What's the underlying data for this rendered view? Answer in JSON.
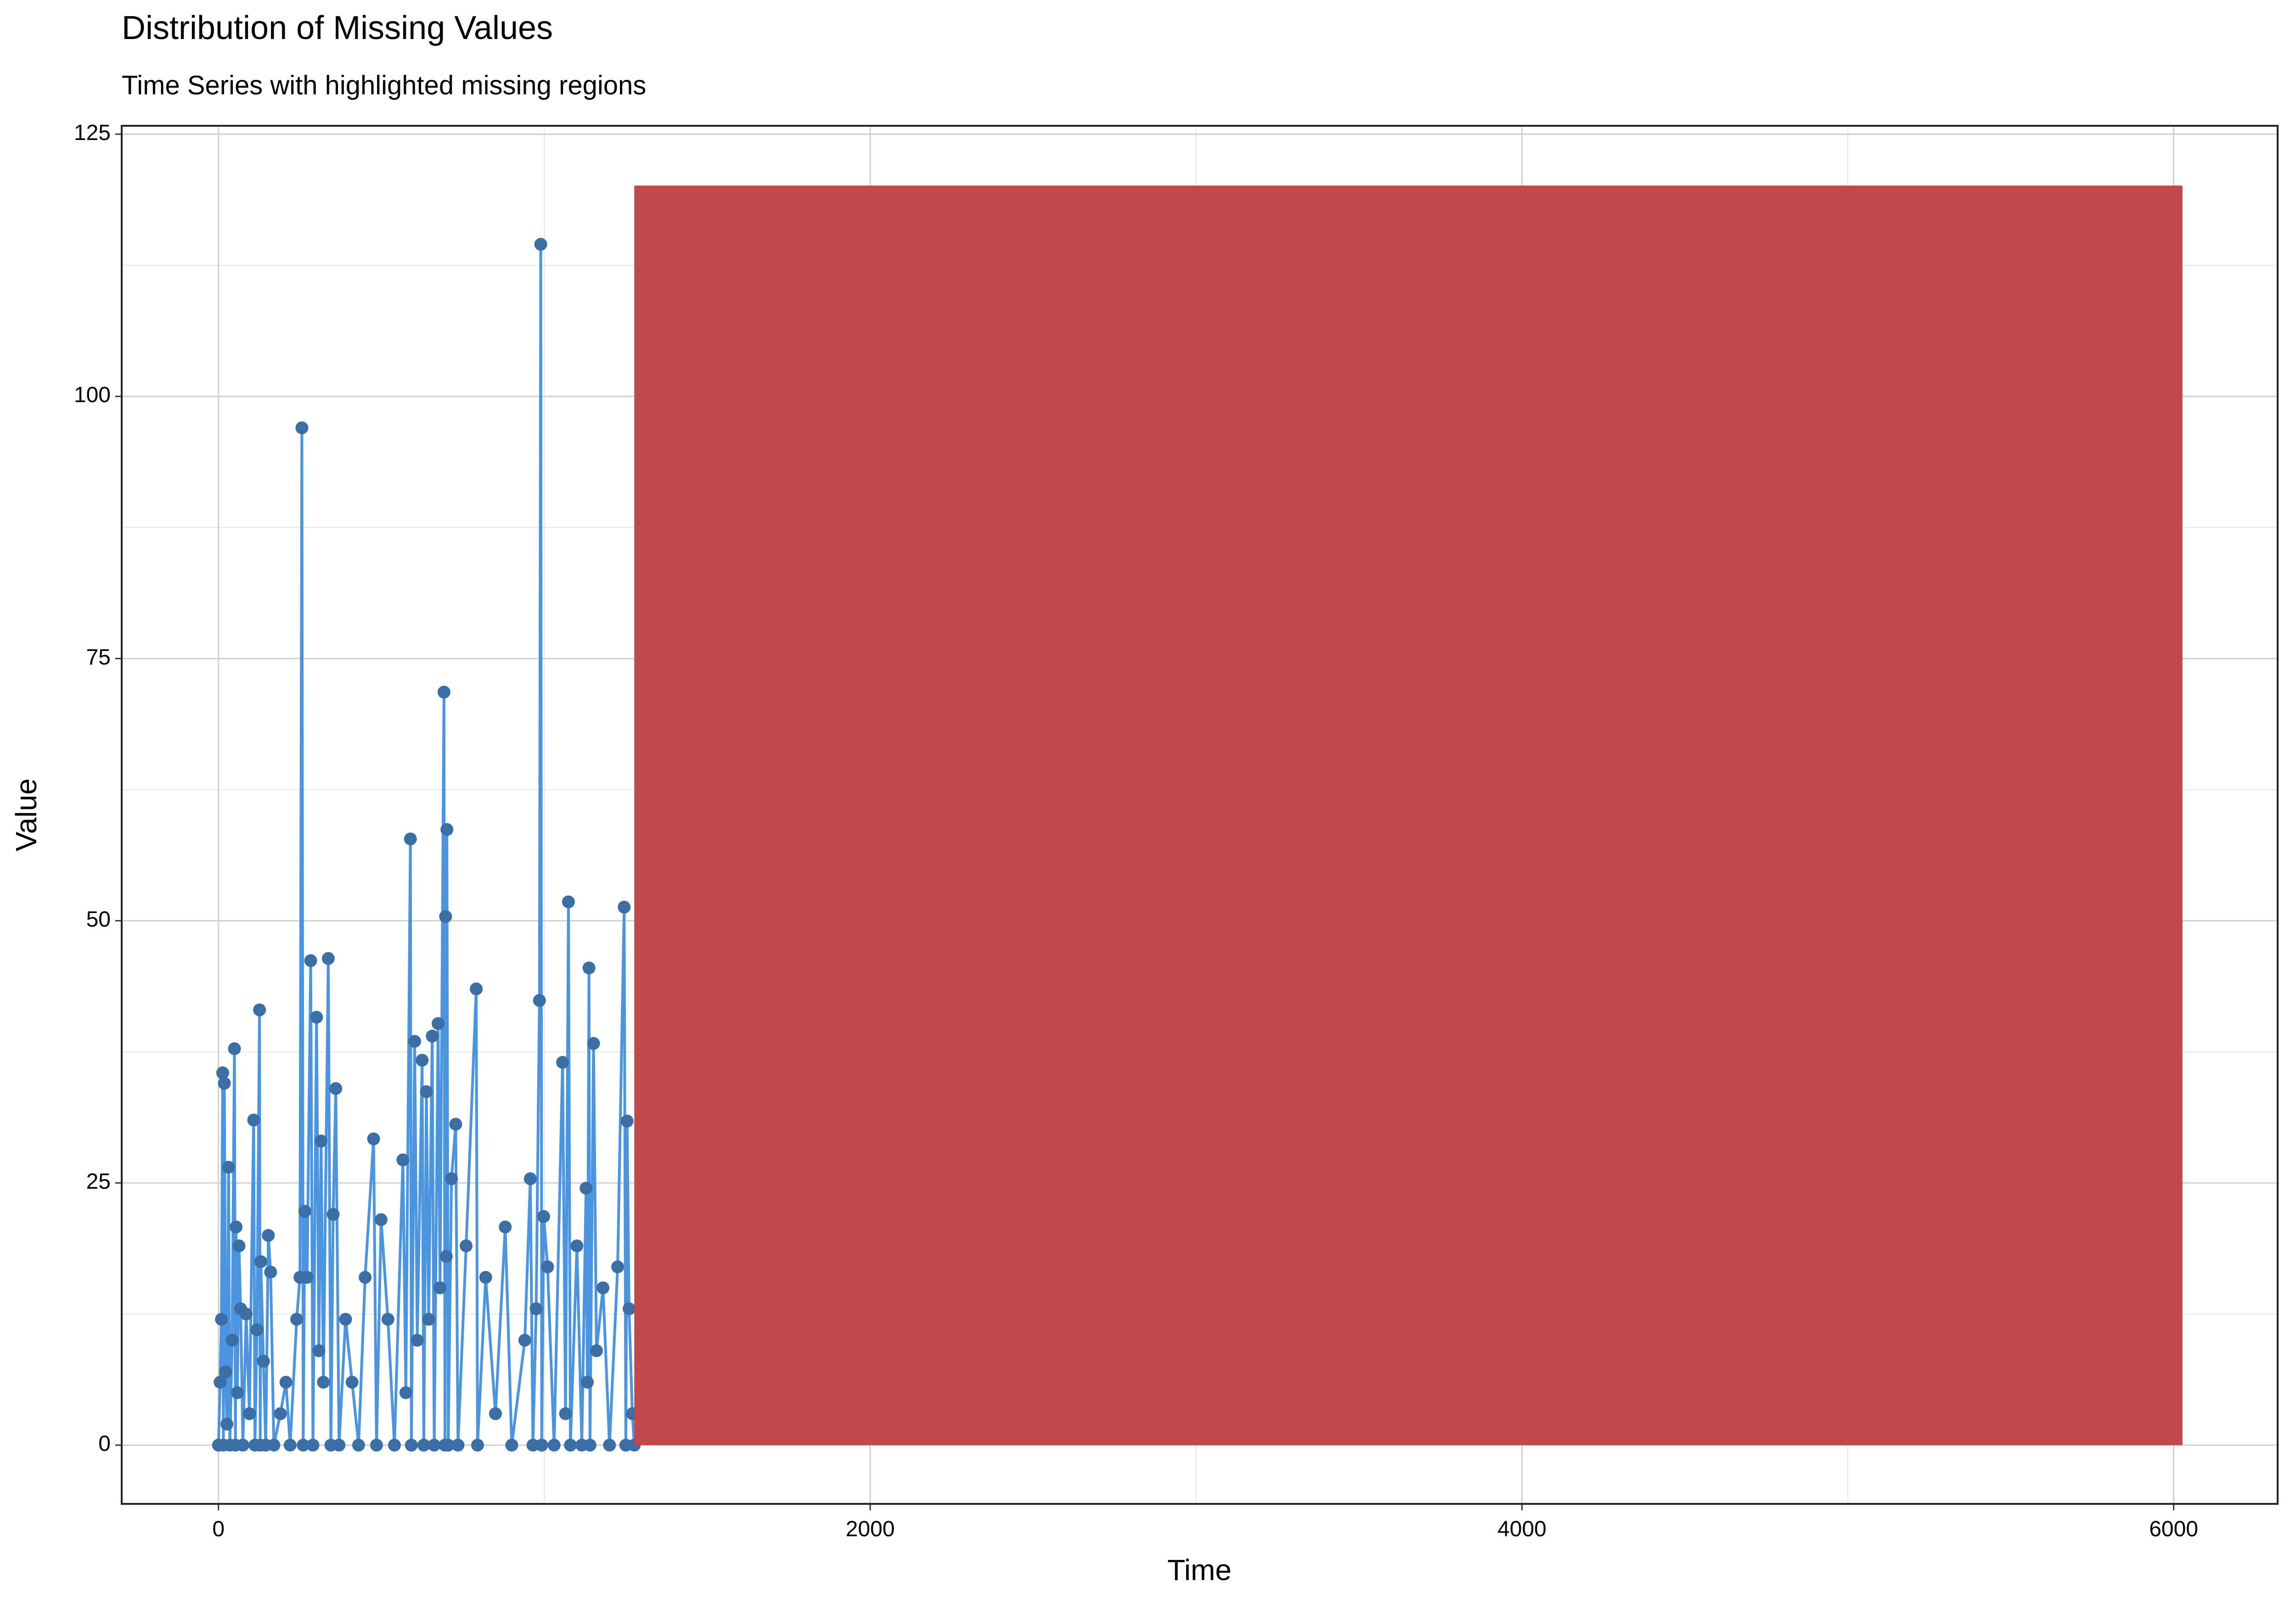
{
  "chart_data": {
    "type": "line",
    "title": "Distribution of Missing Values",
    "subtitle": "Time Series with highlighted missing regions",
    "x_label": "Time",
    "y_label": "Value",
    "xlim": [
      -297,
      6319
    ],
    "ylim": [
      -5.6,
      125.8
    ],
    "xticks": [
      0,
      2000,
      4000,
      6000
    ],
    "yticks": [
      0,
      25,
      50,
      75,
      100,
      125
    ],
    "x_minor_breaks": [
      1000,
      3000,
      5000
    ],
    "y_minor_breaks": [
      12.5,
      37.5,
      62.5,
      87.5,
      112.5
    ],
    "grid": true,
    "series": [
      {
        "line_color": "#4a94e0",
        "color": "#3b6ea5",
        "x": [
          0,
          5,
          9,
          13,
          15,
          18,
          22,
          26,
          31,
          35,
          42,
          49,
          52,
          54,
          58,
          63,
          68,
          75,
          85,
          95,
          108,
          112,
          118,
          126,
          128,
          130,
          138,
          145,
          153,
          160,
          170,
          190,
          207,
          220,
          240,
          250,
          256,
          260,
          265,
          272,
          283,
          290,
          301,
          308,
          315,
          322,
          337,
          345,
          352,
          360,
          370,
          390,
          410,
          430,
          450,
          476,
          485,
          499,
          520,
          540,
          566,
          575,
          589,
          592,
          602,
          610,
          625,
          630,
          638,
          645,
          656,
          662,
          674,
          680,
          692,
          695,
          697,
          699,
          701,
          705,
          715,
          728,
          735,
          760,
          791,
          795,
          820,
          850,
          880,
          900,
          940,
          957,
          965,
          975,
          985,
          989,
          992,
          998,
          1010,
          1030,
          1056,
          1065,
          1074,
          1080,
          1100,
          1115,
          1128,
          1132,
          1137,
          1140,
          1151,
          1160,
          1180,
          1200,
          1225,
          1245,
          1250,
          1254,
          1260,
          1270,
          1276
        ],
        "values": [
          0,
          6,
          12,
          35.5,
          0,
          34.5,
          7,
          2,
          26.5,
          0,
          10,
          37.8,
          0,
          20.8,
          5,
          19,
          13,
          0,
          12.5,
          3,
          31,
          0,
          11,
          41.5,
          0,
          17.5,
          8,
          0,
          20,
          16.5,
          0,
          3,
          6,
          0,
          12,
          16,
          97,
          0,
          22.3,
          16,
          46.2,
          0,
          40.8,
          9,
          29,
          6,
          46.4,
          0,
          22,
          34,
          0,
          12,
          6,
          0,
          16,
          29.2,
          0,
          21.5,
          12,
          0,
          27.2,
          5,
          57.8,
          0,
          38.5,
          10,
          36.7,
          0,
          33.7,
          12,
          39,
          0,
          40.2,
          15,
          71.8,
          0,
          50.4,
          18,
          58.7,
          0,
          25.4,
          30.6,
          0,
          19,
          43.5,
          0,
          16,
          3,
          20.8,
          0,
          10,
          25.4,
          0,
          13,
          42.4,
          114.5,
          0,
          21.8,
          17,
          0,
          36.5,
          3,
          51.8,
          0,
          19,
          0,
          24.5,
          6,
          45.5,
          0,
          38.3,
          9,
          15,
          0,
          17,
          51.3,
          0,
          30.9,
          13,
          3,
          0
        ]
      }
    ],
    "regions": [
      {
        "xmin": 1276,
        "xmax": 6027,
        "ymin": 0,
        "ymax": 120.1,
        "color": "#c0474a"
      }
    ]
  }
}
